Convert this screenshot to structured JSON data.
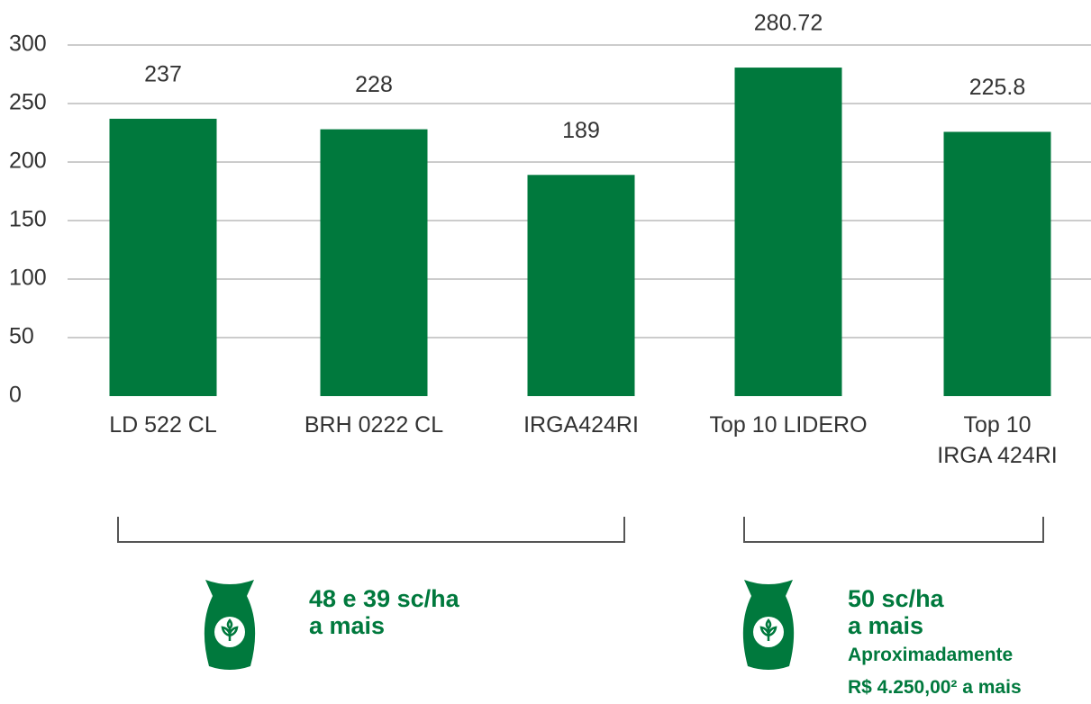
{
  "chart_data": {
    "type": "bar",
    "categories": [
      "LD 522 CL",
      "BRH 0222 CL",
      "IRGA424RI",
      "Top 10 LIDERO",
      "Top 10\nIRGA 424RI"
    ],
    "values": [
      237,
      228,
      189,
      280.72,
      225.8
    ],
    "color": "#00793d",
    "ylim": [
      0,
      300
    ],
    "yticks": [
      0,
      50,
      100,
      150,
      200,
      250,
      300
    ],
    "grid": true,
    "annotations": [
      "48 e 39 sc/ha\na mais",
      "50 sc/ha\na mais",
      "Aproximadamente\nR$ 4.250,00² a mais"
    ]
  }
}
